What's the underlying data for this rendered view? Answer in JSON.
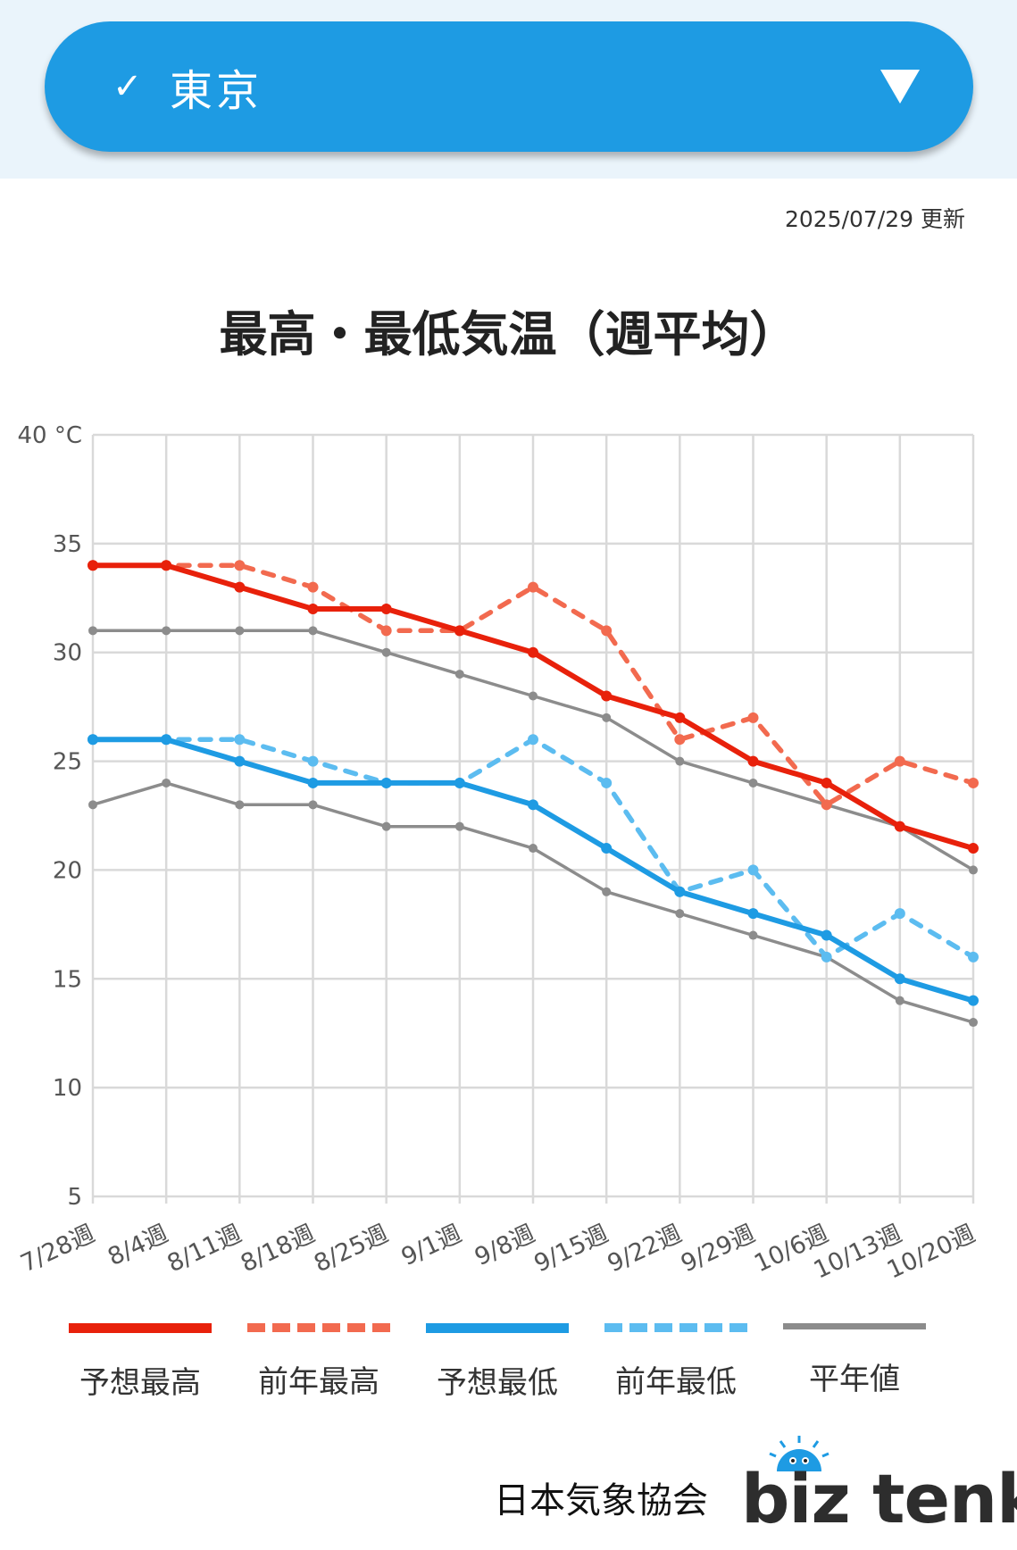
{
  "selector": {
    "check_icon": "check-icon",
    "label": "東京",
    "arrow_icon": "dropdown-arrow-icon"
  },
  "updated": "2025/07/29 更新",
  "chart_data": {
    "type": "line",
    "title": "最高・最低気温（週平均）",
    "xlabel": "",
    "ylabel": "",
    "ylim": [
      5,
      40
    ],
    "yticks": [
      5,
      10,
      15,
      20,
      25,
      30,
      35,
      40
    ],
    "ytick_labels": [
      "5",
      "10",
      "15",
      "20",
      "25",
      "30",
      "35",
      "40 °C"
    ],
    "grid": true,
    "categories": [
      "7/28週",
      "8/4週",
      "8/11週",
      "8/18週",
      "8/25週",
      "9/1週",
      "9/8週",
      "9/15週",
      "9/22週",
      "9/29週",
      "10/6週",
      "10/13週",
      "10/20週"
    ],
    "series": [
      {
        "name": "予想最高",
        "color": "#e8210b",
        "style": "solid",
        "values": [
          34,
          34,
          33,
          32,
          32,
          31,
          30,
          28,
          27,
          25,
          24,
          22,
          21
        ]
      },
      {
        "name": "前年最高",
        "color": "#f26a4f",
        "style": "dashed",
        "values": [
          34,
          34,
          34,
          33,
          31,
          31,
          33,
          31,
          26,
          27,
          23,
          25,
          24
        ]
      },
      {
        "name": "予想最低",
        "color": "#1e9be3",
        "style": "solid",
        "values": [
          26,
          26,
          25,
          24,
          24,
          24,
          23,
          21,
          19,
          18,
          17,
          15,
          14
        ]
      },
      {
        "name": "前年最低",
        "color": "#5cbcf0",
        "style": "dashed",
        "values": [
          26,
          26,
          26,
          25,
          24,
          24,
          26,
          24,
          19,
          20,
          16,
          18,
          16
        ]
      },
      {
        "name": "平年値",
        "color": "#8c8c8c",
        "style": "solid-thin",
        "values": [
          31,
          31,
          31,
          31,
          30,
          29,
          28,
          27,
          25,
          24,
          23,
          22,
          20
        ]
      },
      {
        "name": "平年値",
        "color": "#8c8c8c",
        "style": "solid-thin",
        "values": [
          23,
          24,
          23,
          23,
          22,
          22,
          21,
          19,
          18,
          17,
          16,
          14,
          13
        ]
      }
    ],
    "legend": [
      "予想最高",
      "前年最高",
      "予想最低",
      "前年最低",
      "平年値"
    ],
    "legend_position": "bottom"
  },
  "footer": {
    "org": "日本気象協会",
    "brand": "biz tenki",
    "brand_icon": "sun-logo-icon"
  }
}
